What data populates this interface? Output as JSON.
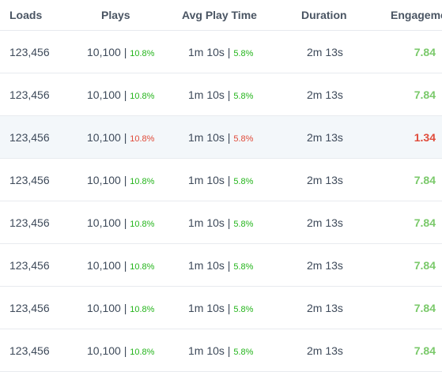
{
  "columns": {
    "loads": "Loads",
    "plays": "Plays",
    "avg_play_time": "Avg Play Time",
    "duration": "Duration",
    "engagement": "Engageme"
  },
  "colors": {
    "positive": "#25b51c",
    "negative": "#e04b3a",
    "engagement_positive": "#7ac96a"
  },
  "rows": [
    {
      "loads": "123,456",
      "plays": "10,100",
      "plays_pct": "10.8%",
      "plays_trend": "up",
      "avg": "1m 10s",
      "avg_pct": "5.8%",
      "avg_trend": "up",
      "duration": "2m 13s",
      "engagement": "7.84",
      "eng_trend": "up"
    },
    {
      "loads": "123,456",
      "plays": "10,100",
      "plays_pct": "10.8%",
      "plays_trend": "up",
      "avg": "1m 10s",
      "avg_pct": "5.8%",
      "avg_trend": "up",
      "duration": "2m 13s",
      "engagement": "7.84",
      "eng_trend": "up"
    },
    {
      "loads": "123,456",
      "plays": "10,100",
      "plays_pct": "10.8%",
      "plays_trend": "down",
      "avg": "1m 10s",
      "avg_pct": "5.8%",
      "avg_trend": "down",
      "duration": "2m 13s",
      "engagement": "1.34",
      "eng_trend": "down",
      "highlight": true
    },
    {
      "loads": "123,456",
      "plays": "10,100",
      "plays_pct": "10.8%",
      "plays_trend": "up",
      "avg": "1m 10s",
      "avg_pct": "5.8%",
      "avg_trend": "up",
      "duration": "2m 13s",
      "engagement": "7.84",
      "eng_trend": "up"
    },
    {
      "loads": "123,456",
      "plays": "10,100",
      "plays_pct": "10.8%",
      "plays_trend": "up",
      "avg": "1m 10s",
      "avg_pct": "5.8%",
      "avg_trend": "up",
      "duration": "2m 13s",
      "engagement": "7.84",
      "eng_trend": "up"
    },
    {
      "loads": "123,456",
      "plays": "10,100",
      "plays_pct": "10.8%",
      "plays_trend": "up",
      "avg": "1m 10s",
      "avg_pct": "5.8%",
      "avg_trend": "up",
      "duration": "2m 13s",
      "engagement": "7.84",
      "eng_trend": "up"
    },
    {
      "loads": "123,456",
      "plays": "10,100",
      "plays_pct": "10.8%",
      "plays_trend": "up",
      "avg": "1m 10s",
      "avg_pct": "5.8%",
      "avg_trend": "up",
      "duration": "2m 13s",
      "engagement": "7.84",
      "eng_trend": "up"
    },
    {
      "loads": "123,456",
      "plays": "10,100",
      "plays_pct": "10.8%",
      "plays_trend": "up",
      "avg": "1m 10s",
      "avg_pct": "5.8%",
      "avg_trend": "up",
      "duration": "2m 13s",
      "engagement": "7.84",
      "eng_trend": "up"
    }
  ]
}
